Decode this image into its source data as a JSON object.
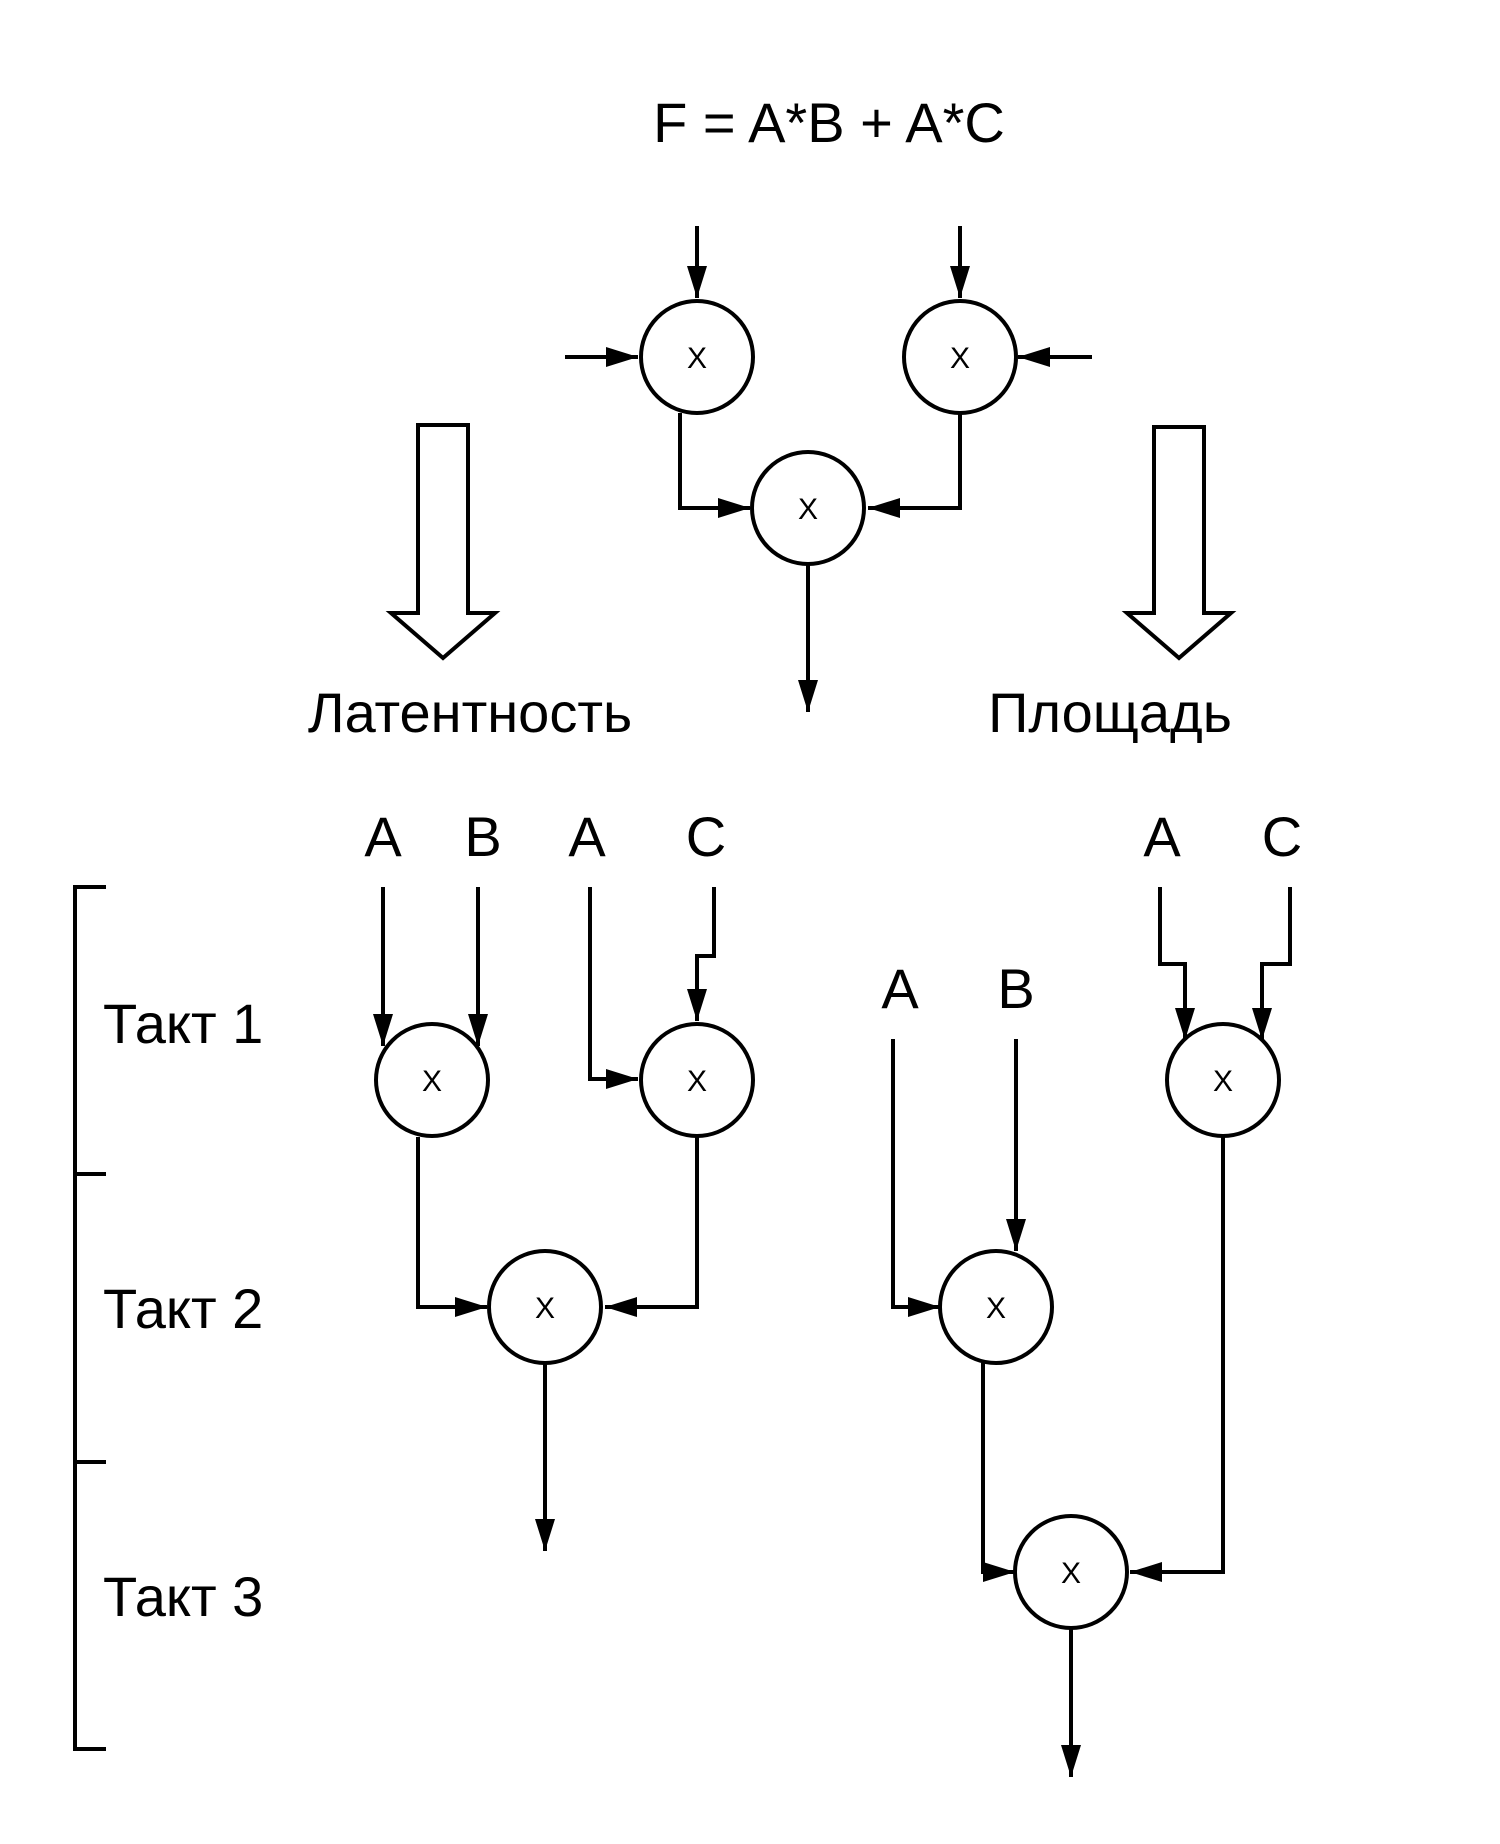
{
  "formula": "F = A*B + A*C",
  "operator_symbol": "X",
  "labels": {
    "latency": "Латентность",
    "area": "Площадь"
  },
  "stages": [
    "Такт 1",
    "Такт 2",
    "Такт 3"
  ],
  "latency_inputs": [
    "A",
    "B",
    "A",
    "C"
  ],
  "area_inputs_top": [
    "A",
    "C"
  ],
  "area_inputs_mid": [
    "A",
    "B"
  ],
  "colors": {
    "stroke": "#000000",
    "background": "#ffffff"
  }
}
